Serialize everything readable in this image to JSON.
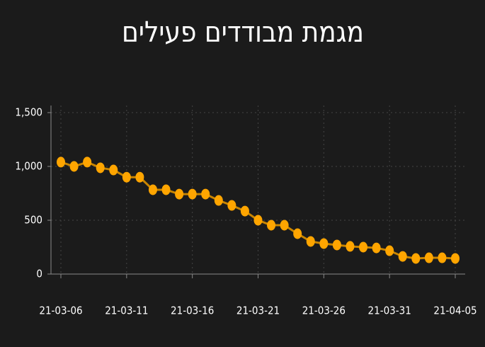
{
  "chart_data": {
    "type": "line",
    "title": "מגמת מבודדים פעילים",
    "categories": [
      "21-03-06",
      null,
      null,
      null,
      null,
      "21-03-11",
      null,
      null,
      null,
      null,
      "21-03-16",
      null,
      null,
      null,
      null,
      "21-03-21",
      null,
      null,
      null,
      null,
      "21-03-26",
      null,
      null,
      null,
      null,
      "21-03-31",
      null,
      null,
      null,
      null,
      "21-04-05"
    ],
    "series": [
      {
        "color": "#ffa500",
        "values": [
          1040,
          1000,
          1040,
          987,
          967,
          900,
          900,
          783,
          783,
          743,
          743,
          743,
          684,
          638,
          585,
          500,
          454,
          454,
          375,
          303,
          283,
          270,
          257,
          250,
          243,
          217,
          164,
          145,
          151,
          151,
          145
        ]
      }
    ],
    "ylim": [
      0,
      1500
    ],
    "yticks": [
      0,
      500,
      {
        "value": 1000,
        "label": "1,000"
      },
      {
        "value": 1500,
        "label": "1,500"
      }
    ],
    "grid": true
  }
}
